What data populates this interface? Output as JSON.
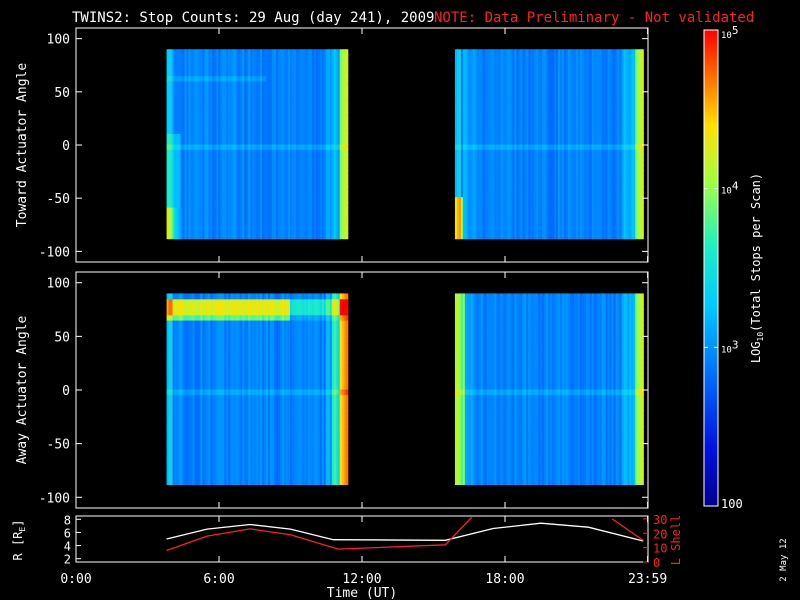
{
  "chart_data": {
    "type": "heatmap",
    "title": "TWINS2: Stop Counts: 29 Aug (day 241), 2009",
    "note": "NOTE: Data Preliminary - Not validated",
    "xlabel": "Time (UT)",
    "x_ticks": [
      "0:00",
      "6:00",
      "12:00",
      "18:00",
      "23:59"
    ],
    "x_tick_hours": [
      0,
      6,
      12,
      18,
      23.983
    ],
    "xlim_hours": [
      0,
      24
    ],
    "panels": [
      {
        "name": "toward",
        "ylabel": "Toward Actuator Angle",
        "ylim": [
          -110,
          110
        ],
        "y_ticks": [
          100,
          50,
          0,
          -50,
          -100
        ],
        "data_segments_hours": [
          [
            3.8,
            11.4
          ],
          [
            15.9,
            23.8
          ]
        ],
        "angle_range": [
          -88,
          90
        ]
      },
      {
        "name": "away",
        "ylabel": "Away Actuator Angle",
        "ylim": [
          -110,
          110
        ],
        "y_ticks": [
          100,
          50,
          0,
          -50,
          -100
        ],
        "data_segments_hours": [
          [
            3.8,
            11.4
          ],
          [
            15.9,
            23.8
          ]
        ],
        "angle_range": [
          -88,
          90
        ]
      }
    ],
    "colorbar": {
      "label": "LOG10(Total Stops per Scan)",
      "label_main": "LOG",
      "label_sub": "10",
      "label_rest": "(Total Stops per Scan)",
      "range": [
        100,
        100000
      ],
      "ticks": [
        {
          "value": 100,
          "label": "100",
          "base": "",
          "exp": ""
        },
        {
          "value": 1000,
          "label": "",
          "base": "10",
          "exp": "3"
        },
        {
          "value": 10000,
          "label": "",
          "base": "10",
          "exp": "4"
        },
        {
          "value": 100000,
          "label": "",
          "base": "10",
          "exp": "5"
        }
      ]
    },
    "orbit_panel": {
      "left_label": "R [R",
      "left_label_sub": "E",
      "left_label_end": "]",
      "right_label": "L Shell",
      "left_ticks": [
        8,
        6,
        4,
        2
      ],
      "left_range": [
        1.5,
        8.5
      ],
      "right_ticks": [
        30,
        20,
        10,
        0
      ],
      "right_range": [
        0,
        32
      ],
      "R_series": {
        "name": "R",
        "color": "#ffffff",
        "hours": [
          3.8,
          5.5,
          7.3,
          9.0,
          10.8,
          15.5,
          17.5,
          19.5,
          21.5,
          23.8
        ],
        "values": [
          5.0,
          6.5,
          7.2,
          6.5,
          4.9,
          4.8,
          6.6,
          7.4,
          6.8,
          4.7
        ]
      },
      "L_series": {
        "name": "L Shell",
        "color": "#ff2020",
        "segments": [
          {
            "hours": [
              3.8,
              5.5,
              7.3,
              9.0,
              11.0,
              15.5,
              16.6
            ],
            "values": [
              8,
              18,
              23,
              19,
              9,
              12,
              31
            ]
          },
          {
            "hours": [
              22.5,
              23.8
            ],
            "values": [
              30,
              15
            ]
          }
        ]
      }
    },
    "side_date": "2 May 12",
    "colors": {
      "background": "#000000",
      "axes": "#ffffff",
      "note": "#ff2020",
      "l_shell": "#ff2020"
    }
  }
}
